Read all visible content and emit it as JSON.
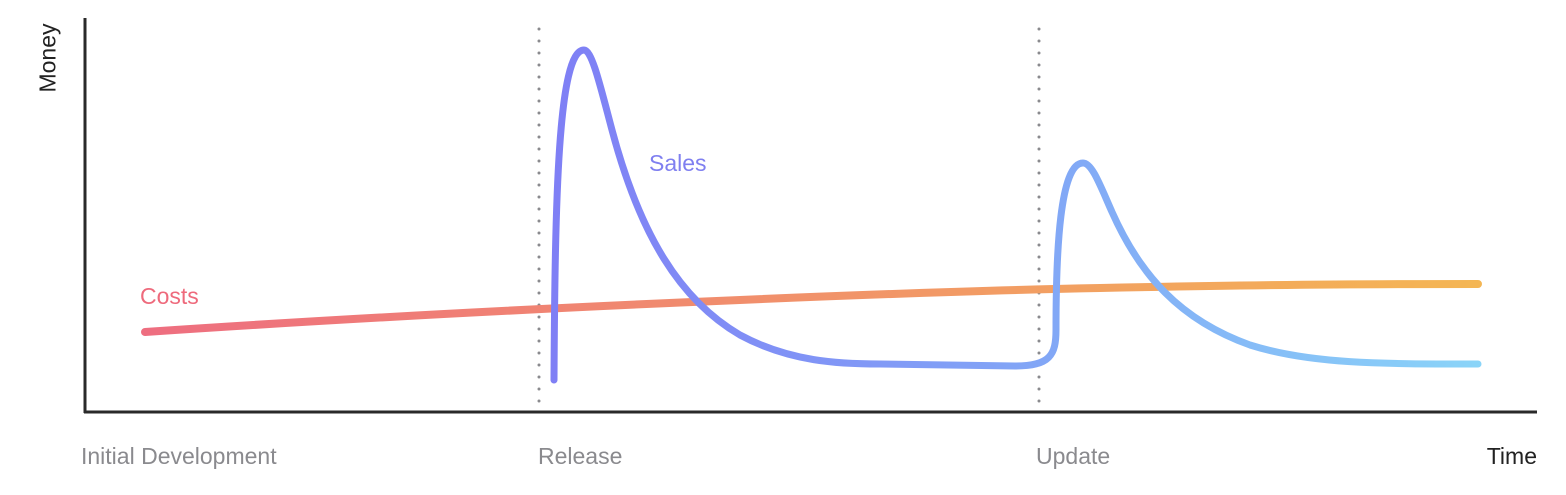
{
  "axes": {
    "y_label": "Money",
    "x_label": "Time"
  },
  "phases": [
    "Initial Development",
    "Release",
    "Update"
  ],
  "series": [
    {
      "name": "Costs",
      "colors": [
        "#ee6e80",
        "#f4b654"
      ]
    },
    {
      "name": "Sales",
      "colors": [
        "#7f7ff5",
        "#8ad4f8"
      ]
    }
  ],
  "colors": {
    "axis": "#2a2a2a",
    "marker": "#8a8a8e",
    "costs_label": "#ee6a7c",
    "sales_label": "#7f7ff0"
  }
}
